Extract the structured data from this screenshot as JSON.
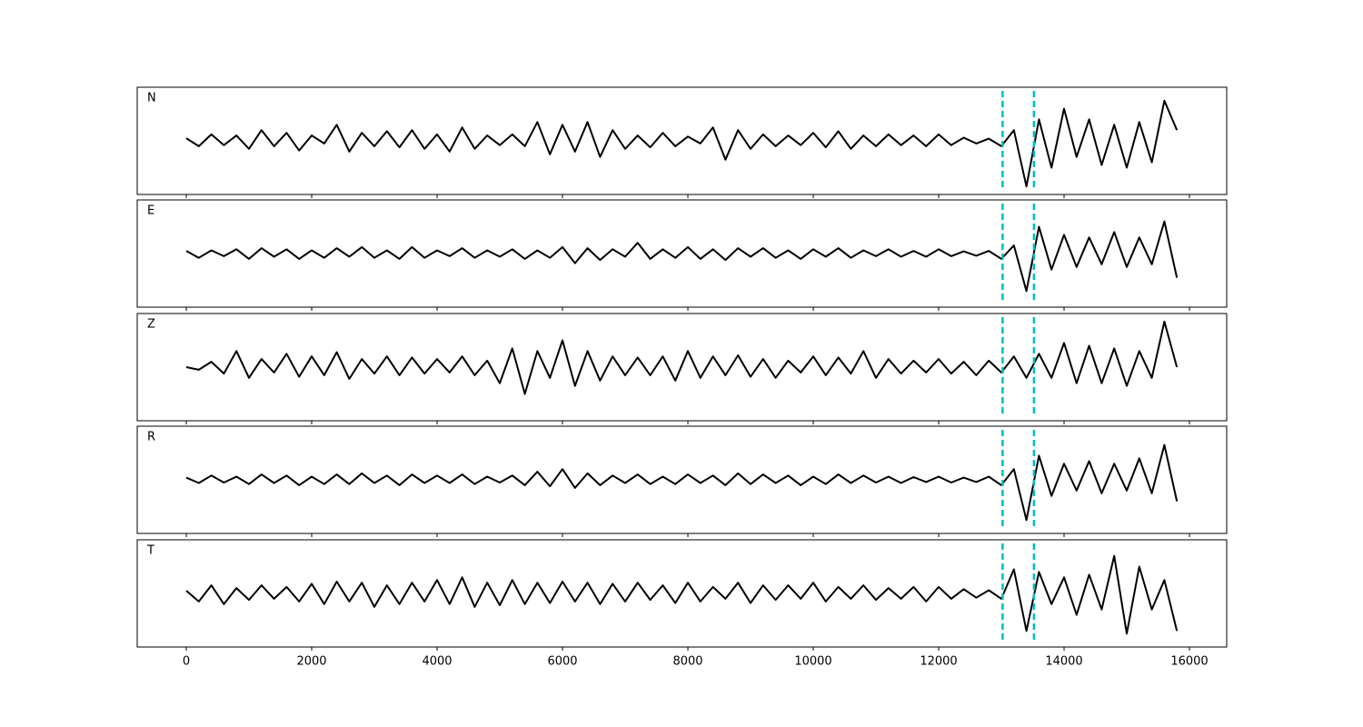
{
  "chart_data": {
    "type": "line",
    "x": [
      0,
      200,
      400,
      600,
      800,
      1000,
      1200,
      1400,
      1600,
      1800,
      2000,
      2200,
      2400,
      2600,
      2800,
      3000,
      3200,
      3400,
      3600,
      3800,
      4000,
      4200,
      4400,
      4600,
      4800,
      5000,
      5200,
      5400,
      5600,
      5800,
      6000,
      6200,
      6400,
      6600,
      6800,
      7000,
      7200,
      7400,
      7600,
      7800,
      8000,
      8200,
      8400,
      8600,
      8800,
      9000,
      9200,
      9400,
      9600,
      9800,
      10000,
      10200,
      10400,
      10600,
      10800,
      11000,
      11200,
      11400,
      11600,
      11800,
      12000,
      12200,
      12400,
      12600,
      12800,
      13000,
      13200,
      13400,
      13600,
      13800,
      14000,
      14200,
      14400,
      14600,
      14800,
      15000,
      15200,
      15400,
      15600,
      15800
    ],
    "series": [
      {
        "name": "N",
        "color": "#000000",
        "values": [
          0.05,
          -0.1,
          0.12,
          -0.08,
          0.1,
          -0.15,
          0.2,
          -0.1,
          0.15,
          -0.18,
          0.1,
          -0.05,
          0.3,
          -0.2,
          0.15,
          -0.1,
          0.18,
          -0.12,
          0.2,
          -0.15,
          0.12,
          -0.2,
          0.25,
          -0.15,
          0.1,
          -0.08,
          0.12,
          -0.1,
          0.35,
          -0.25,
          0.3,
          -0.2,
          0.35,
          -0.3,
          0.2,
          -0.15,
          0.1,
          -0.12,
          0.15,
          -0.1,
          0.08,
          -0.05,
          0.25,
          -0.35,
          0.2,
          -0.15,
          0.12,
          -0.1,
          0.1,
          -0.08,
          0.15,
          -0.12,
          0.18,
          -0.15,
          0.1,
          -0.1,
          0.12,
          -0.08,
          0.1,
          -0.1,
          0.12,
          -0.08,
          0.06,
          -0.05,
          0.04,
          -0.1,
          0.2,
          -0.85,
          0.4,
          -0.5,
          0.6,
          -0.3,
          0.4,
          -0.45,
          0.3,
          -0.5,
          0.35,
          -0.4,
          0.75,
          0.2
        ]
      },
      {
        "name": "E",
        "color": "#000000",
        "values": [
          0.05,
          -0.08,
          0.06,
          -0.05,
          0.08,
          -0.1,
          0.1,
          -0.06,
          0.08,
          -0.1,
          0.06,
          -0.08,
          0.1,
          -0.06,
          0.12,
          -0.08,
          0.06,
          -0.1,
          0.12,
          -0.08,
          0.06,
          -0.05,
          0.1,
          -0.08,
          0.06,
          -0.06,
          0.08,
          -0.1,
          0.06,
          -0.08,
          0.12,
          -0.18,
          0.1,
          -0.12,
          0.08,
          -0.06,
          0.2,
          -0.1,
          0.08,
          -0.08,
          0.12,
          -0.1,
          0.08,
          -0.12,
          0.1,
          -0.06,
          0.1,
          -0.08,
          0.06,
          -0.1,
          0.08,
          -0.06,
          0.1,
          -0.08,
          0.06,
          -0.05,
          0.08,
          -0.06,
          0.05,
          -0.06,
          0.08,
          -0.05,
          0.04,
          -0.04,
          0.05,
          -0.1,
          0.15,
          -0.7,
          0.5,
          -0.3,
          0.35,
          -0.25,
          0.3,
          -0.2,
          0.4,
          -0.25,
          0.3,
          -0.2,
          0.6,
          -0.45
        ]
      },
      {
        "name": "Z",
        "color": "#000000",
        "values": [
          0.0,
          -0.05,
          0.1,
          -0.12,
          0.3,
          -0.2,
          0.15,
          -0.1,
          0.25,
          -0.18,
          0.2,
          -0.15,
          0.28,
          -0.22,
          0.15,
          -0.12,
          0.2,
          -0.15,
          0.18,
          -0.12,
          0.15,
          -0.1,
          0.2,
          -0.15,
          0.12,
          -0.3,
          0.35,
          -0.5,
          0.3,
          -0.2,
          0.5,
          -0.35,
          0.3,
          -0.25,
          0.2,
          -0.15,
          0.18,
          -0.15,
          0.2,
          -0.25,
          0.3,
          -0.2,
          0.2,
          -0.15,
          0.22,
          -0.18,
          0.15,
          -0.2,
          0.12,
          -0.1,
          0.2,
          -0.15,
          0.18,
          -0.12,
          0.3,
          -0.2,
          0.15,
          -0.12,
          0.12,
          -0.1,
          0.15,
          -0.12,
          0.1,
          -0.15,
          0.12,
          -0.1,
          0.2,
          -0.2,
          0.25,
          -0.2,
          0.45,
          -0.3,
          0.4,
          -0.3,
          0.35,
          -0.35,
          0.3,
          -0.2,
          0.85,
          0.0
        ]
      },
      {
        "name": "R",
        "color": "#000000",
        "values": [
          0.04,
          -0.06,
          0.08,
          -0.05,
          0.06,
          -0.08,
          0.1,
          -0.06,
          0.08,
          -0.1,
          0.06,
          -0.08,
          0.1,
          -0.08,
          0.12,
          -0.06,
          0.08,
          -0.1,
          0.1,
          -0.06,
          0.08,
          -0.06,
          0.1,
          -0.08,
          0.06,
          -0.05,
          0.08,
          -0.1,
          0.15,
          -0.12,
          0.2,
          -0.15,
          0.12,
          -0.1,
          0.08,
          -0.06,
          0.1,
          -0.08,
          0.06,
          -0.08,
          0.1,
          -0.06,
          0.08,
          -0.1,
          0.12,
          -0.08,
          0.1,
          -0.06,
          0.08,
          -0.1,
          0.06,
          -0.08,
          0.1,
          -0.06,
          0.08,
          -0.05,
          0.06,
          -0.06,
          0.05,
          -0.04,
          0.06,
          -0.05,
          0.04,
          -0.04,
          0.06,
          -0.1,
          0.2,
          -0.75,
          0.45,
          -0.3,
          0.3,
          -0.2,
          0.35,
          -0.25,
          0.3,
          -0.2,
          0.4,
          -0.25,
          0.65,
          -0.4
        ]
      },
      {
        "name": "T",
        "color": "#000000",
        "values": [
          0.05,
          -0.15,
          0.15,
          -0.2,
          0.1,
          -0.12,
          0.15,
          -0.1,
          0.12,
          -0.15,
          0.18,
          -0.2,
          0.22,
          -0.15,
          0.2,
          -0.25,
          0.15,
          -0.2,
          0.2,
          -0.15,
          0.25,
          -0.2,
          0.3,
          -0.25,
          0.2,
          -0.22,
          0.25,
          -0.2,
          0.2,
          -0.18,
          0.22,
          -0.15,
          0.2,
          -0.2,
          0.18,
          -0.15,
          0.2,
          -0.12,
          0.15,
          -0.18,
          0.2,
          -0.15,
          0.12,
          -0.1,
          0.2,
          -0.18,
          0.15,
          -0.12,
          0.15,
          -0.1,
          0.2,
          -0.15,
          0.12,
          -0.1,
          0.15,
          -0.12,
          0.1,
          -0.1,
          0.12,
          -0.15,
          0.12,
          -0.1,
          0.08,
          -0.08,
          0.06,
          -0.1,
          0.45,
          -0.7,
          0.4,
          -0.2,
          0.3,
          -0.4,
          0.35,
          -0.3,
          0.7,
          -0.75,
          0.5,
          -0.3,
          0.25,
          -0.7
        ]
      }
    ],
    "vlines": [
      13020,
      13520
    ],
    "vline_color": "#00bfbf",
    "xlim": [
      -783,
      16594
    ],
    "ylim": [
      -1,
      1
    ],
    "xticks": [
      0,
      2000,
      4000,
      6000,
      8000,
      10000,
      12000,
      14000,
      16000
    ]
  }
}
